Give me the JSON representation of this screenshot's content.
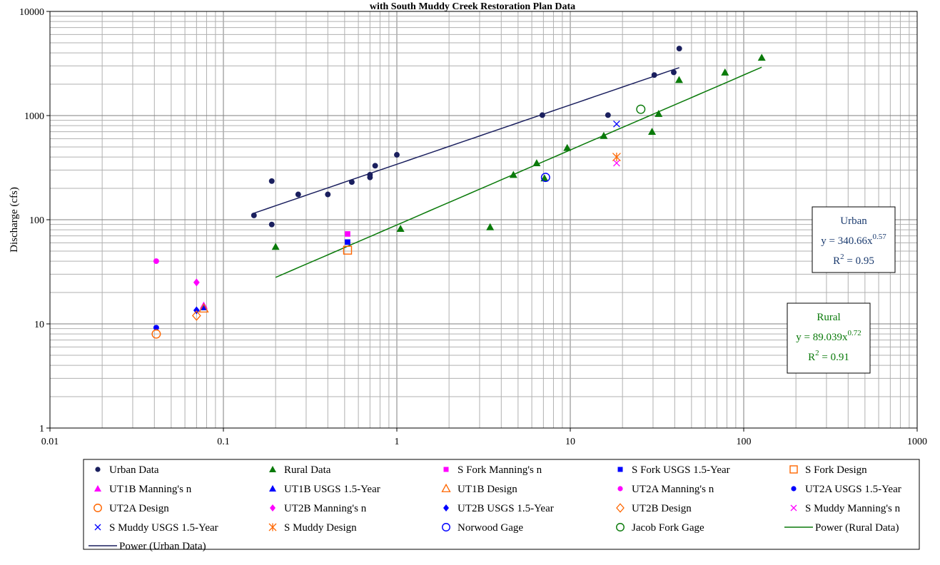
{
  "chart_data": {
    "type": "scatter",
    "title": "with South Muddy Creek Restoration Plan Data",
    "xlabel": "",
    "ylabel": "Discharge (cfs)",
    "x_scale": "log",
    "y_scale": "log",
    "xlim": [
      0.01,
      1000
    ],
    "ylim": [
      1,
      10000
    ],
    "x_ticks": [
      "0.01",
      "0.1",
      "1",
      "10",
      "100",
      "1000"
    ],
    "y_ticks": [
      "1",
      "10",
      "100",
      "1000",
      "10000"
    ],
    "grid": true,
    "legend_position": "bottom",
    "series": [
      {
        "name": "Urban Data",
        "marker": "circle-filled",
        "color": "#1a1f5e",
        "points": [
          [
            0.15,
            110
          ],
          [
            0.19,
            235
          ],
          [
            0.19,
            90
          ],
          [
            0.27,
            175
          ],
          [
            0.4,
            175
          ],
          [
            0.55,
            230
          ],
          [
            0.7,
            255
          ],
          [
            0.7,
            270
          ],
          [
            0.75,
            330
          ],
          [
            1.0,
            420
          ],
          [
            6.9,
            1010
          ],
          [
            16.5,
            1010
          ],
          [
            30.5,
            2450
          ],
          [
            39.5,
            2600
          ],
          [
            42.5,
            4400
          ]
        ]
      },
      {
        "name": "Rural Data",
        "marker": "triangle-filled",
        "color": "#0a7a0a",
        "points": [
          [
            0.2,
            55
          ],
          [
            1.05,
            82
          ],
          [
            3.45,
            85
          ],
          [
            4.7,
            270
          ],
          [
            6.4,
            350
          ],
          [
            7.1,
            250
          ],
          [
            9.6,
            490
          ],
          [
            15.6,
            640
          ],
          [
            29.6,
            700
          ],
          [
            32.3,
            1040
          ],
          [
            42.4,
            2200
          ],
          [
            78,
            2600
          ],
          [
            127,
            3600
          ]
        ]
      },
      {
        "name": "S Fork Manning's n",
        "marker": "square-filled",
        "color": "#ff00ff",
        "points": [
          [
            0.52,
            73
          ]
        ]
      },
      {
        "name": "S Fork USGS 1.5-Year",
        "marker": "square-filled",
        "color": "#0000ff",
        "points": [
          [
            0.52,
            61
          ]
        ]
      },
      {
        "name": "S Fork Design",
        "marker": "square-open",
        "color": "#ff6600",
        "points": [
          [
            0.52,
            51
          ]
        ]
      },
      {
        "name": "UT1B Manning's n",
        "marker": "triangle-filled",
        "color": "#ff00ff",
        "points": [
          [
            0.077,
            15
          ]
        ]
      },
      {
        "name": "UT1B USGS 1.5-Year",
        "marker": "triangle-filled",
        "color": "#0000ff",
        "points": [
          [
            0.077,
            14.5
          ]
        ]
      },
      {
        "name": "UT1B Design",
        "marker": "triangle-open",
        "color": "#ff6600",
        "points": [
          [
            0.077,
            14
          ]
        ]
      },
      {
        "name": "UT2A Manning's n",
        "marker": "circle-filled",
        "color": "#ff00ff",
        "points": [
          [
            0.041,
            40
          ]
        ]
      },
      {
        "name": "UT2A USGS 1.5-Year",
        "marker": "circle-filled",
        "color": "#0000ff",
        "points": [
          [
            0.041,
            9.2
          ]
        ]
      },
      {
        "name": "UT2A Design",
        "marker": "circle-open",
        "color": "#ff6600",
        "points": [
          [
            0.041,
            8
          ]
        ]
      },
      {
        "name": "UT2B Manning's n",
        "marker": "diamond-filled",
        "color": "#ff00ff",
        "points": [
          [
            0.07,
            25
          ]
        ]
      },
      {
        "name": "UT2B USGS 1.5-Year",
        "marker": "diamond-filled",
        "color": "#0000ff",
        "points": [
          [
            0.07,
            13.5
          ]
        ]
      },
      {
        "name": "UT2B Design",
        "marker": "diamond-open",
        "color": "#ff6600",
        "points": [
          [
            0.07,
            12
          ]
        ]
      },
      {
        "name": "S Muddy Manning's n",
        "marker": "x",
        "color": "#ff00ff",
        "points": [
          [
            18.5,
            350
          ]
        ]
      },
      {
        "name": "S Muddy USGS 1.5-Year",
        "marker": "x",
        "color": "#0000ff",
        "points": [
          [
            18.5,
            830
          ]
        ]
      },
      {
        "name": "S Muddy Design",
        "marker": "asterisk",
        "color": "#ff6600",
        "points": [
          [
            18.5,
            400
          ]
        ]
      },
      {
        "name": "Norwood Gage",
        "marker": "circle-open",
        "color": "#0000ff",
        "points": [
          [
            7.2,
            255
          ]
        ]
      },
      {
        "name": "Jacob Fork Gage",
        "marker": "circle-open",
        "color": "#0a7a0a",
        "points": [
          [
            25.5,
            1150
          ]
        ]
      },
      {
        "name": "Power (Rural Data)",
        "marker": "line",
        "color": "#0a7a0a",
        "fit": {
          "a": 89.039,
          "b": 0.72,
          "x_range": [
            0.2,
            127
          ]
        }
      },
      {
        "name": "Power (Urban Data)",
        "marker": "line",
        "color": "#1a1f5e",
        "fit": {
          "a": 340.66,
          "b": 0.57,
          "x_range": [
            0.15,
            42.5
          ]
        }
      }
    ],
    "annotations": [
      {
        "name": "urban-equation",
        "color": "#1a3a6e",
        "label": "Urban",
        "eq_prefix": "y = 340.66x",
        "eq_exp": "0.57",
        "r2_prefix": "R",
        "r2_exp": "2",
        "r2_value": " = 0.95"
      },
      {
        "name": "rural-equation",
        "color": "#0a7a0a",
        "label": "Rural",
        "eq_prefix": "y = 89.039x",
        "eq_exp": "0.72",
        "r2_prefix": "R",
        "r2_exp": "2",
        "r2_value": " = 0.91"
      }
    ]
  }
}
